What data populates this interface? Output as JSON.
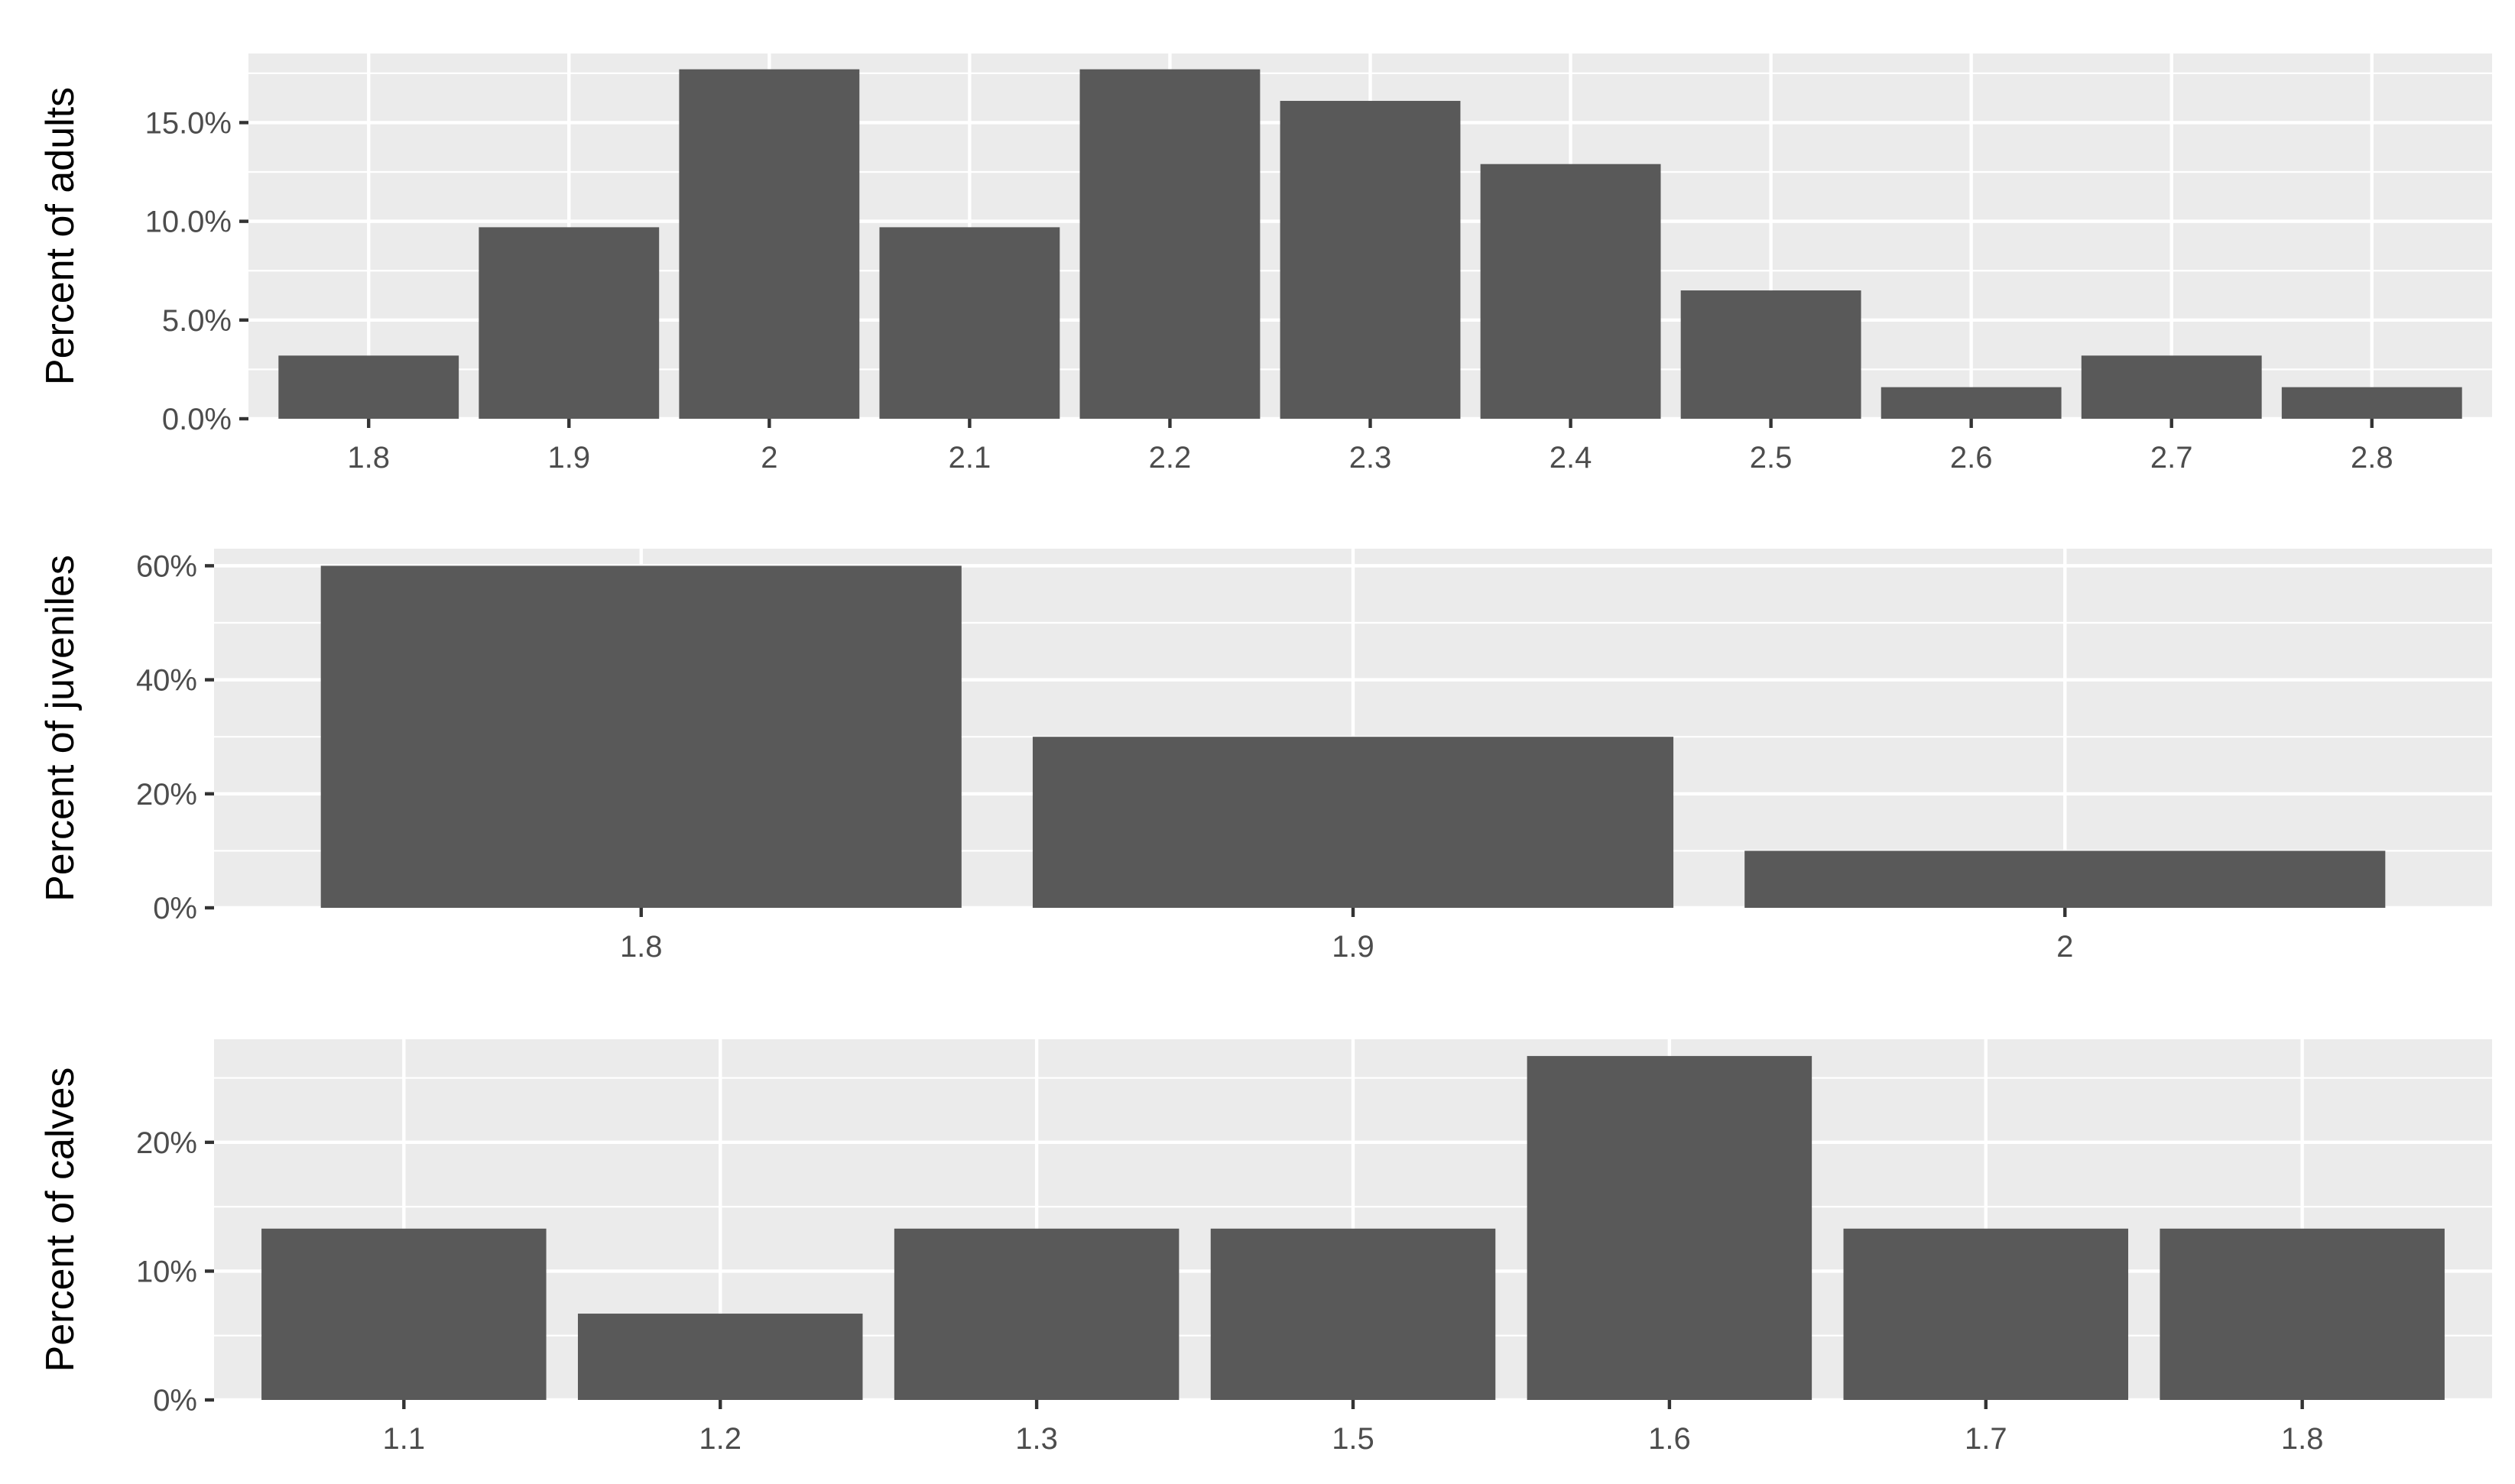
{
  "chart_data": [
    {
      "type": "bar",
      "ylabel": "Percent of adults",
      "categories": [
        "1.8",
        "1.9",
        "2",
        "2.1",
        "2.2",
        "2.3",
        "2.4",
        "2.5",
        "2.6",
        "2.7",
        "2.8"
      ],
      "values": [
        3.2,
        9.7,
        17.7,
        9.7,
        17.7,
        16.1,
        12.9,
        6.5,
        1.6,
        3.2,
        1.6
      ],
      "ylim": [
        0,
        18.5
      ],
      "yticks": [
        0,
        5,
        10,
        15
      ],
      "ytick_labels": [
        "0.0%",
        "5.0%",
        "10.0%",
        "15.0%"
      ],
      "grid": true
    },
    {
      "type": "bar",
      "ylabel": "Percent of juveniles",
      "categories": [
        "1.8",
        "1.9",
        "2"
      ],
      "values": [
        60,
        30,
        10
      ],
      "ylim": [
        0,
        63
      ],
      "yticks": [
        0,
        20,
        40,
        60
      ],
      "ytick_labels": [
        "0%",
        "20%",
        "40%",
        "60%"
      ],
      "grid": true
    },
    {
      "type": "bar",
      "ylabel": "Percent of calves",
      "categories": [
        "1.1",
        "1.2",
        "1.3",
        "1.5",
        "1.6",
        "1.7",
        "1.8"
      ],
      "values": [
        13.3,
        6.7,
        13.3,
        13.3,
        26.7,
        13.3,
        13.3
      ],
      "ylim": [
        0,
        28
      ],
      "yticks": [
        0,
        10,
        20
      ],
      "ytick_labels": [
        "0%",
        "10%",
        "20%"
      ],
      "grid": true
    }
  ]
}
